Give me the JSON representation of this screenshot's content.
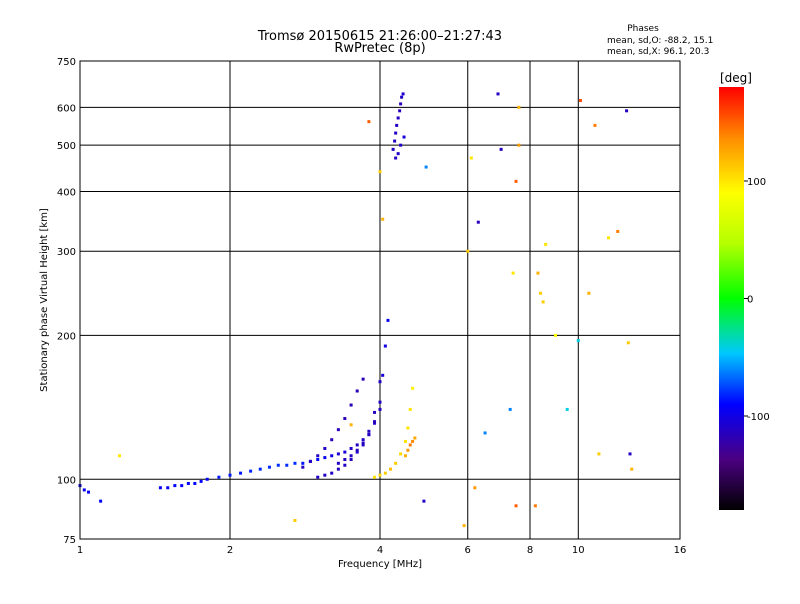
{
  "chart_data": {
    "type": "scatter",
    "title": "Tromsø 20150615 21:26:00–21:27:43",
    "subtitle": "RwPretec (8p)",
    "xlabel": "Frequency [MHz]",
    "ylabel": "Stationary phase Virtual Height [km]",
    "xscale": "log",
    "yscale": "log",
    "xlim": [
      1,
      16
    ],
    "ylim": [
      75,
      750
    ],
    "xticks": [
      1,
      2,
      4,
      6,
      8,
      10,
      16
    ],
    "yticks": [
      75,
      100,
      200,
      300,
      400,
      500,
      600,
      750
    ],
    "grid": true,
    "phases": {
      "heading": "Phases",
      "o_stats": "mean, sd,O:  -88.2, 15.1",
      "x_stats": "mean, sd,X:  96.1, 20.3"
    },
    "colorbar": {
      "label": "[deg]",
      "min": -180,
      "max": 180,
      "ticks": [
        100,
        0,
        -100
      ],
      "placement": "right"
    },
    "series": [
      {
        "x": [
          1.0,
          1.02,
          1.04,
          1.1,
          1.45,
          1.5,
          1.55,
          1.6,
          1.65,
          1.7,
          1.75,
          1.8,
          1.9,
          2.0,
          2.1,
          2.2,
          2.3,
          2.4,
          2.5,
          2.6,
          2.7,
          2.8,
          2.9,
          3.0,
          3.1,
          3.2,
          3.3,
          3.4,
          3.5,
          3.6,
          3.7,
          3.8,
          3.9,
          4.0
        ],
        "y": [
          97,
          95,
          94,
          90,
          96,
          96,
          97,
          97,
          98,
          98,
          99,
          100,
          101,
          102,
          103,
          104,
          105,
          106,
          107,
          107,
          108,
          108,
          109,
          110,
          111,
          112,
          113,
          114,
          116,
          118,
          121,
          126,
          138,
          160
        ],
        "phase": [
          -95,
          -95,
          -95,
          -90,
          -95,
          -95,
          -92,
          -92,
          -92,
          -90,
          -90,
          -90,
          -85,
          -85,
          -85,
          -82,
          -82,
          -80,
          -80,
          -80,
          -80,
          -85,
          -85,
          -88,
          -95,
          -100,
          -105,
          -105,
          -110,
          -110,
          -110,
          -112,
          -112,
          -110
        ]
      },
      {
        "x": [
          3.0,
          3.1,
          3.2,
          3.3,
          3.4,
          3.5,
          3.6,
          3.7,
          3.8,
          3.9,
          4.0,
          4.05,
          4.1,
          4.15
        ],
        "y": [
          101,
          102,
          103,
          105,
          107,
          110,
          114,
          118,
          124,
          132,
          145,
          165,
          190,
          215
        ],
        "phase": [
          -110,
          -110,
          -110,
          -112,
          -112,
          -112,
          -112,
          -112,
          -112,
          -112,
          -110,
          -105,
          -100,
          -95
        ]
      },
      {
        "x": [
          2.8,
          2.9,
          3.0,
          3.1,
          3.2,
          3.3,
          3.4,
          3.5,
          3.6,
          3.7
        ],
        "y": [
          106,
          109,
          112,
          116,
          121,
          127,
          134,
          143,
          153,
          162
        ],
        "phase": [
          -112,
          -112,
          -112,
          -112,
          -115,
          -115,
          -115,
          -115,
          -115,
          -115
        ]
      },
      {
        "x": [
          3.3,
          3.4,
          3.5,
          3.6,
          3.7,
          3.8,
          3.9,
          4.0
        ],
        "y": [
          108,
          110,
          112,
          115,
          119,
          124,
          131,
          140
        ],
        "phase": [
          -112,
          -112,
          -112,
          -112,
          -112,
          -112,
          -112,
          -112
        ]
      },
      {
        "x": [
          4.25,
          4.28,
          4.3,
          4.32,
          4.35,
          4.38,
          4.4,
          4.42,
          4.45,
          4.47,
          4.3,
          4.35,
          4.4
        ],
        "y": [
          490,
          510,
          530,
          550,
          570,
          590,
          610,
          630,
          640,
          520,
          470,
          480,
          500
        ],
        "phase": [
          -110,
          -110,
          -112,
          -112,
          -112,
          -115,
          -115,
          -110,
          -108,
          -105,
          -112,
          -110,
          -108
        ]
      },
      {
        "x": [
          3.9,
          4.0,
          4.1,
          4.2,
          4.3,
          4.4,
          4.5,
          4.55,
          4.6,
          4.65
        ],
        "y": [
          101,
          102,
          103,
          105,
          108,
          113,
          120,
          128,
          140,
          155
        ],
        "phase": [
          100,
          105,
          110,
          115,
          110,
          105,
          100,
          100,
          100,
          95
        ]
      },
      {
        "x": [
          4.5,
          4.55,
          4.6,
          4.65,
          4.7
        ],
        "y": [
          112,
          115,
          118,
          120,
          122
        ],
        "phase": [
          120,
          130,
          140,
          135,
          125
        ]
      },
      {
        "x": [
          1.2,
          2.7,
          3.5,
          3.8,
          4.0,
          4.05,
          4.9,
          4.95,
          5.9,
          6.0,
          6.1,
          6.2,
          6.3,
          6.5,
          6.9,
          7.0,
          7.3,
          7.4,
          7.5,
          7.5,
          7.6,
          7.6,
          8.2,
          8.3,
          8.4,
          8.5,
          8.6,
          9.0,
          9.5,
          10.0,
          10.1,
          10.5,
          10.8,
          11.0,
          11.5,
          12.0,
          12.5,
          12.6,
          12.7,
          12.8
        ],
        "y": [
          112,
          82,
          130,
          560,
          440,
          350,
          90,
          450,
          80,
          300,
          470,
          96,
          345,
          125,
          640,
          490,
          140,
          270,
          420,
          88,
          500,
          600,
          88,
          270,
          245,
          235,
          310,
          200,
          140,
          195,
          620,
          245,
          550,
          113,
          320,
          330,
          590,
          193,
          113,
          105
        ],
        "phase": [
          100,
          110,
          120,
          150,
          110,
          120,
          -110,
          -60,
          120,
          110,
          100,
          130,
          -115,
          -60,
          -112,
          -112,
          -60,
          100,
          150,
          150,
          130,
          120,
          140,
          120,
          110,
          110,
          100,
          90,
          -40,
          -40,
          155,
          120,
          140,
          110,
          100,
          140,
          -112,
          110,
          -112,
          120
        ]
      }
    ]
  }
}
